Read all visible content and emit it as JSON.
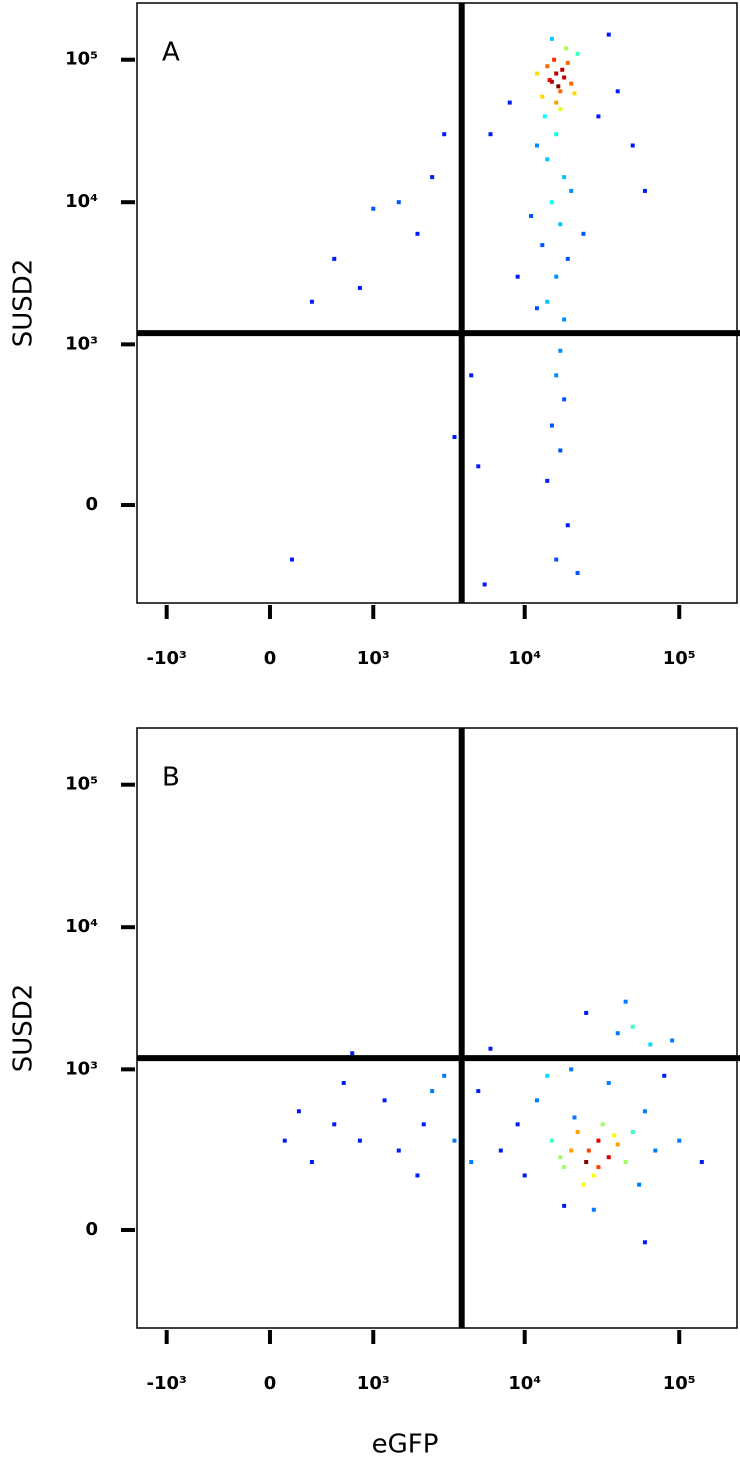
{
  "chart_data": [
    {
      "type": "scatter",
      "panel_label": "A",
      "y_label": "SUSD2",
      "xscale": "biexponential",
      "yscale": "biexponential",
      "xlim": [
        -1600,
        240000
      ],
      "ylim": [
        -350,
        250000
      ],
      "xticks": [
        {
          "value": -1000,
          "label": "-10³"
        },
        0,
        {
          "value": 1000,
          "label": "10³"
        },
        {
          "value": 10000,
          "label": "10⁴"
        },
        {
          "value": 100000,
          "label": "10⁵"
        }
      ],
      "yticks": [
        0,
        {
          "value": 1000,
          "label": "10³"
        },
        {
          "value": 10000,
          "label": "10⁴"
        },
        {
          "value": 100000,
          "label": "10⁵"
        }
      ],
      "gates": {
        "x": 3900,
        "y": 1200
      },
      "x": [
        15000,
        16000,
        17000,
        14000,
        18000,
        16500,
        15500,
        17500,
        13000,
        19000,
        16000,
        14500,
        20000,
        12000,
        22000,
        18500,
        15000,
        17000,
        13500,
        21000,
        16000,
        14000,
        18000,
        15000,
        17000,
        13000,
        19000,
        16000,
        14000,
        18000,
        12000,
        20000,
        15500,
        17000,
        16000,
        18000,
        15000,
        17000,
        14000,
        19000,
        16000,
        22000,
        12000,
        11000,
        24000,
        30000,
        40000,
        60000,
        35000,
        8000,
        6000,
        50000,
        9000,
        3000,
        2500,
        1500,
        1000,
        800,
        500,
        2000,
        3500,
        300,
        3500,
        150,
        4500,
        5000,
        5500
      ],
      "y": [
        70000,
        80000,
        60000,
        90000,
        75000,
        65000,
        100000,
        85000,
        55000,
        95000,
        50000,
        72000,
        68000,
        80000,
        110000,
        120000,
        140000,
        45000,
        40000,
        58000,
        30000,
        20000,
        15000,
        10000,
        7000,
        5000,
        4000,
        3000,
        2000,
        1500,
        25000,
        12000,
        1200,
        900,
        600,
        400,
        250,
        150,
        60,
        -50,
        -150,
        -200,
        1800,
        8000,
        6000,
        40000,
        60000,
        12000,
        150000,
        50000,
        30000,
        25000,
        3000,
        30000,
        15000,
        10000,
        9000,
        2500,
        4000,
        6000,
        1200,
        2000,
        200,
        -150,
        600,
        100,
        -250
      ]
    },
    {
      "type": "scatter",
      "panel_label": "B",
      "y_label": "SUSD2",
      "x_label": "eGFP",
      "xscale": "biexponential",
      "yscale": "biexponential",
      "xlim": [
        -1600,
        240000
      ],
      "ylim": [
        -350,
        250000
      ],
      "xticks": [
        {
          "value": -1000,
          "label": "-10³"
        },
        0,
        {
          "value": 1000,
          "label": "10³"
        },
        {
          "value": 10000,
          "label": "10⁴"
        },
        {
          "value": 100000,
          "label": "10⁵"
        }
      ],
      "yticks": [
        0,
        {
          "value": 1000,
          "label": "10³"
        },
        {
          "value": 10000,
          "label": "10⁴"
        },
        {
          "value": 100000,
          "label": "10⁵"
        }
      ],
      "gates": {
        "x": 3900,
        "y": 1200
      },
      "x": [
        20000,
        25000,
        30000,
        35000,
        18000,
        22000,
        28000,
        40000,
        32000,
        15000,
        26000,
        45000,
        38000,
        17000,
        24000,
        30000,
        50000,
        21000,
        12000,
        60000,
        70000,
        10000,
        55000,
        14000,
        30000,
        40000,
        25000,
        50000,
        80000,
        65000,
        9000,
        7000,
        100000,
        140000,
        35000,
        20000,
        45000,
        28000,
        18000,
        60000,
        5000,
        4500,
        6000,
        90000,
        300,
        500,
        800,
        1200,
        200,
        1500,
        2500,
        2000,
        600,
        3000,
        100,
        2200,
        700,
        3500
      ],
      "y": [
        250,
        200,
        300,
        220,
        180,
        350,
        150,
        280,
        400,
        300,
        250,
        200,
        330,
        220,
        120,
        180,
        350,
        450,
        600,
        500,
        250,
        150,
        120,
        900,
        1200,
        1800,
        2500,
        2000,
        900,
        1500,
        400,
        250,
        300,
        200,
        800,
        1000,
        3000,
        50,
        60,
        -30,
        700,
        200,
        1400,
        1600,
        200,
        400,
        300,
        600,
        500,
        250,
        700,
        150,
        800,
        900,
        300,
        400,
        1300,
        300
      ]
    }
  ]
}
